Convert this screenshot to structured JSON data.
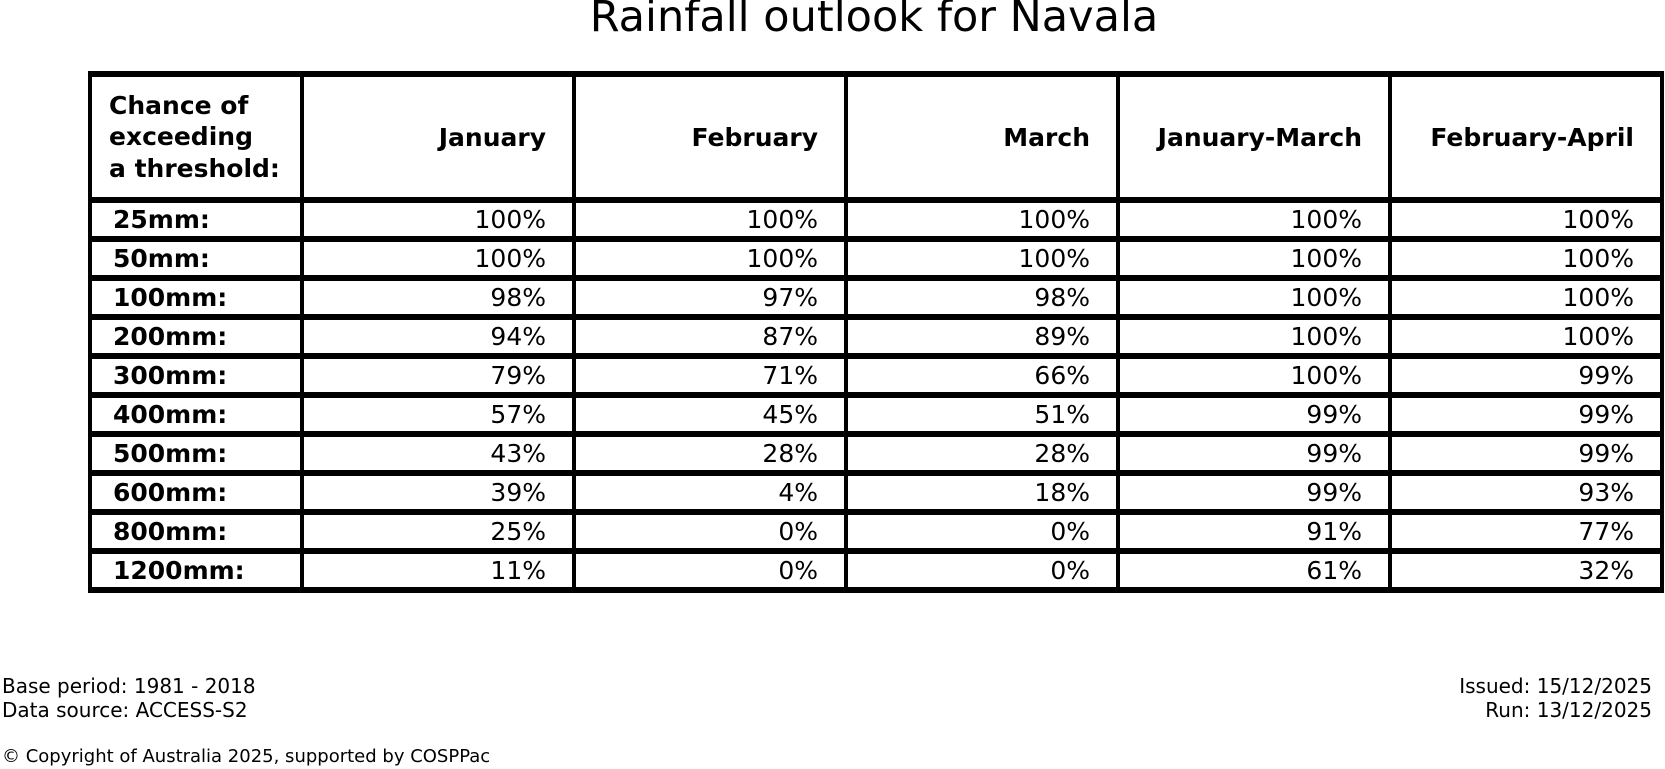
{
  "title": "Rainfall outlook for Navala",
  "chart_data": {
    "type": "table",
    "title": "Rainfall outlook for Navala",
    "columns": [
      "Chance of\nexceeding\na threshold:",
      "January",
      "February",
      "March",
      "January-March",
      "February-April"
    ],
    "rows": [
      {
        "threshold": "25mm:",
        "values": [
          "100%",
          "100%",
          "100%",
          "100%",
          "100%"
        ]
      },
      {
        "threshold": "50mm:",
        "values": [
          "100%",
          "100%",
          "100%",
          "100%",
          "100%"
        ]
      },
      {
        "threshold": "100mm:",
        "values": [
          "98%",
          "97%",
          "98%",
          "100%",
          "100%"
        ]
      },
      {
        "threshold": "200mm:",
        "values": [
          "94%",
          "87%",
          "89%",
          "100%",
          "100%"
        ]
      },
      {
        "threshold": "300mm:",
        "values": [
          "79%",
          "71%",
          "66%",
          "100%",
          "99%"
        ]
      },
      {
        "threshold": "400mm:",
        "values": [
          "57%",
          "45%",
          "51%",
          "99%",
          "99%"
        ]
      },
      {
        "threshold": "500mm:",
        "values": [
          "43%",
          "28%",
          "28%",
          "99%",
          "99%"
        ]
      },
      {
        "threshold": "600mm:",
        "values": [
          "39%",
          "4%",
          "18%",
          "99%",
          "93%"
        ]
      },
      {
        "threshold": "800mm:",
        "values": [
          "25%",
          "0%",
          "0%",
          "91%",
          "77%"
        ]
      },
      {
        "threshold": "1200mm:",
        "values": [
          "11%",
          "0%",
          "0%",
          "61%",
          "32%"
        ]
      }
    ],
    "layout": {
      "grid": "all-cell-borders",
      "value_alignment": "right",
      "label_alignment": "left"
    }
  },
  "footer": {
    "base_period": "Base period: 1981 - 2018",
    "data_source": "Data source: ACCESS-S2",
    "issued": "Issued: 15/12/2025",
    "run": "Run: 13/12/2025",
    "copyright": "© Copyright of Australia 2025, supported by COSPPac"
  },
  "colors": {
    "background": "#ffffff",
    "text": "#000000",
    "table_border": "#000000"
  }
}
